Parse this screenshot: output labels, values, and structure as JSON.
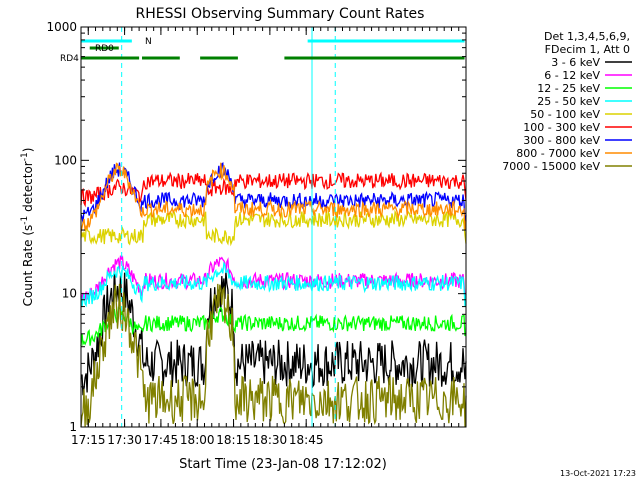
{
  "chart_data": {
    "type": "line",
    "title": "RHESSI Observing Summary Count Rates",
    "xlabel": "Start Time (23-Jan-08 17:12:02)",
    "ylabel": "Count Rate (s⁻¹ detector⁻¹)",
    "ylabel_main": "Count Rate (s",
    "ylabel_sup1": "-1",
    "ylabel_mid": " detector",
    "ylabel_sup2": "-1",
    "ylabel_end": ")",
    "xrange_minutes": [
      17.2,
      19.85
    ],
    "x_ticks": [
      "17:15",
      "17:30",
      "17:45",
      "18:00",
      "18:15",
      "18:30",
      "18:45"
    ],
    "x_tick_minutes": [
      17.25,
      17.5,
      17.75,
      18.0,
      18.25,
      18.5,
      18.75
    ],
    "y_scale": "log",
    "ylim": [
      1,
      1000
    ],
    "y_ticks": [
      "1",
      "10",
      "100",
      "1000"
    ],
    "y_tick_values": [
      1,
      10,
      100,
      1000
    ],
    "legend_header": [
      "Det 1,3,4,5,6,9,",
      "FDecim 1, Att 0"
    ],
    "legend_placement": "right",
    "series": [
      {
        "name": "3 - 6 keV",
        "color": "#000000",
        "night": 3.0,
        "peak": 11
      },
      {
        "name": "6 - 12 keV",
        "color": "#ff00ff",
        "night": 12.5,
        "peak": 17
      },
      {
        "name": "12 - 25 keV",
        "color": "#00ff00",
        "night": 6.0,
        "peak": 7
      },
      {
        "name": "25 - 50 keV",
        "color": "#00ffff",
        "night": 12.0,
        "peak": 15
      },
      {
        "name": "50 - 100 keV",
        "color": "#dcd200",
        "night": 36,
        "peak": 27
      },
      {
        "name": "100 - 300 keV",
        "color": "#ff0000",
        "night": 70,
        "peak": 63
      },
      {
        "name": "300 - 800 keV",
        "color": "#0000ff",
        "night": 50,
        "peak": 85
      },
      {
        "name": "800 - 7000 keV",
        "color": "#ff8c00",
        "night": 43,
        "peak": 84
      },
      {
        "name": "7000 - 15000 keV",
        "color": "#808000",
        "night": 1.6,
        "peak": 8
      }
    ],
    "periods": {
      "day_peaks": [
        17.46,
        18.16
      ],
      "eclipse_starts": [
        17.63,
        18.0,
        18.34
      ],
      "eclipse_ends": [
        18.0,
        18.4,
        19.84
      ],
      "cyan_dashed_lines": [
        17.48,
        18.95
      ],
      "cyan_solid_lines": [
        17.2,
        18.79
      ]
    },
    "flag_labels": {
      "n_label": "N",
      "rd0_label": "RD0",
      "rd4_label": "RD4"
    },
    "flag_segments": {
      "N": [
        [
          17.2,
          17.55
        ],
        [
          18.76,
          19.84
        ]
      ],
      "RD0": [
        [
          17.26,
          17.46
        ]
      ],
      "RD4": [
        [
          17.2,
          17.6
        ],
        [
          17.62,
          17.88
        ],
        [
          18.02,
          18.28
        ],
        [
          18.6,
          19.84
        ]
      ]
    },
    "flag_colors": {
      "N": "#00ffff",
      "RD0": "#008000",
      "RD4": "#008000"
    },
    "timestamp": "13-Oct-2021 17:23"
  }
}
